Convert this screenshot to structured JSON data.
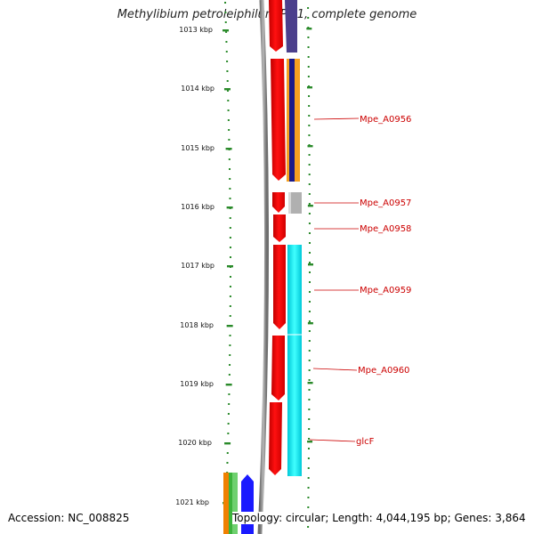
{
  "title": "Methylibium petroleiphilum PM1, complete genome",
  "footer": {
    "accession": "Accession: NC_008825",
    "summary": "Topology: circular; Length: 4,044,195 bp; Genes: 3,864"
  },
  "ruler": {
    "start_kbp": 1013,
    "end_kbp": 1021,
    "ticks": [
      "1013 kbp",
      "1014 kbp",
      "1015 kbp",
      "1016 kbp",
      "1017 kbp",
      "1018 kbp",
      "1019 kbp",
      "1020 kbp",
      "1021 kbp"
    ]
  },
  "gene_labels": [
    {
      "name": "Mpe_A0956",
      "kbp": 1014.53
    },
    {
      "name": "Mpe_A0957",
      "kbp": 1015.92
    },
    {
      "name": "Mpe_A0958",
      "kbp": 1016.36
    },
    {
      "name": "Mpe_A0959",
      "kbp": 1017.4
    },
    {
      "name": "Mpe_A0960",
      "kbp": 1018.75
    },
    {
      "name": "glcF",
      "kbp": 1019.97
    }
  ],
  "colors": {
    "gene": "#ff0000",
    "gene_dark": "#b00000",
    "cds_purple": "#4b3f8c",
    "cds_navy": "#1a1a8a",
    "cds_orange": "#f5a020",
    "cds_gray": "#b0b0b0",
    "cds_cyan": "#00e8f0",
    "backbone": "#8a8a8a",
    "ruler_tick": "#2a8a2a",
    "label": "#cc0000"
  }
}
